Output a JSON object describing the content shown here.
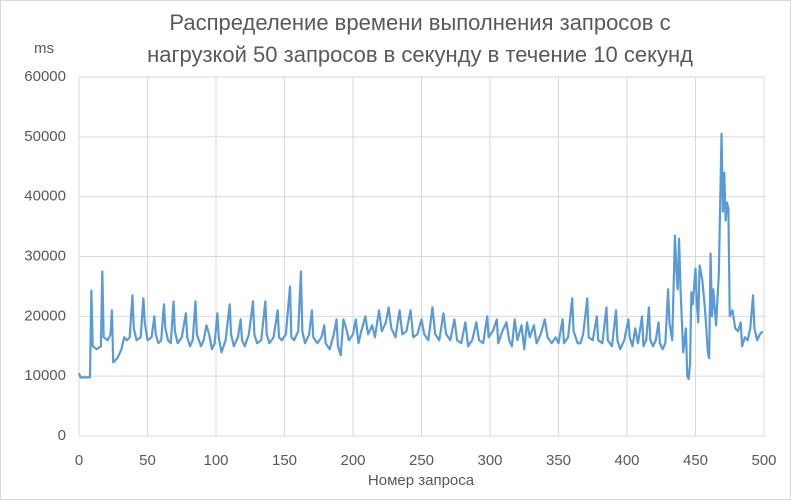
{
  "chart_data": {
    "type": "line",
    "title": [
      "Распределение времени выполнения запросов с",
      "нагрузкой 50 запросов в секунду в течение 10 секунд"
    ],
    "y_label": "ms",
    "x_label": "Номер запроса",
    "color": "#5b9bd5",
    "grid": true,
    "xlim": [
      0,
      500
    ],
    "xticks": [
      0,
      50,
      100,
      150,
      200,
      250,
      300,
      350,
      400,
      450,
      500
    ],
    "ylim": [
      0,
      60000
    ],
    "yticks": [
      0,
      10000,
      20000,
      30000,
      40000,
      50000,
      60000
    ],
    "x": [
      0,
      1,
      8,
      9,
      10,
      13,
      16,
      17,
      18,
      21,
      23,
      24,
      25,
      28,
      31,
      33,
      35,
      37,
      39,
      40,
      42,
      45,
      47,
      48,
      50,
      53,
      55,
      56,
      58,
      60,
      62,
      63,
      65,
      67,
      69,
      70,
      72,
      75,
      78,
      79,
      81,
      83,
      85,
      86,
      89,
      91,
      93,
      95,
      97,
      99,
      101,
      102,
      104,
      107,
      110,
      111,
      113,
      116,
      118,
      119,
      121,
      124,
      127,
      128,
      130,
      133,
      136,
      137,
      139,
      142,
      145,
      146,
      148,
      151,
      154,
      155,
      157,
      160,
      162,
      163,
      165,
      168,
      170,
      171,
      174,
      177,
      179,
      180,
      183,
      186,
      188,
      189,
      191,
      193,
      195,
      197,
      200,
      202,
      204,
      206,
      209,
      211,
      214,
      216,
      219,
      221,
      224,
      226,
      228,
      231,
      234,
      236,
      239,
      242,
      244,
      247,
      250,
      252,
      255,
      258,
      260,
      263,
      266,
      268,
      271,
      274,
      276,
      279,
      282,
      284,
      287,
      290,
      292,
      295,
      298,
      299,
      302,
      305,
      306,
      309,
      312,
      314,
      316,
      318,
      320,
      323,
      325,
      327,
      329,
      332,
      334,
      337,
      340,
      342,
      345,
      348,
      350,
      353,
      354,
      357,
      360,
      361,
      364,
      366,
      368,
      371,
      372,
      375,
      378,
      379,
      382,
      385,
      386,
      389,
      392,
      393,
      395,
      398,
      401,
      402,
      404,
      406,
      408,
      411,
      412,
      414,
      416,
      417,
      419,
      421,
      423,
      424,
      426,
      428,
      430,
      431,
      433,
      435,
      436,
      437,
      438,
      439,
      441,
      443,
      444,
      445,
      446,
      447,
      448,
      450,
      451,
      452,
      453,
      455,
      457,
      459,
      460,
      461,
      462,
      463,
      465,
      467,
      469,
      470,
      471,
      472,
      473,
      474,
      475,
      477,
      479,
      481,
      483,
      484,
      486,
      488,
      490,
      492,
      493,
      495,
      497,
      499
    ],
    "values": [
      10500,
      9800,
      9800,
      24300,
      15000,
      14500,
      15000,
      27500,
      16500,
      16000,
      17000,
      21000,
      12300,
      13000,
      14500,
      16500,
      16000,
      16500,
      23500,
      18000,
      16000,
      16500,
      23000,
      19000,
      16000,
      16500,
      20000,
      17000,
      15500,
      16000,
      22000,
      18000,
      16000,
      15500,
      22500,
      17500,
      15500,
      16500,
      20500,
      16500,
      15000,
      16000,
      22500,
      17000,
      15000,
      16000,
      18500,
      17000,
      14500,
      15500,
      20500,
      16500,
      14000,
      16000,
      22000,
      17000,
      15000,
      16500,
      19500,
      16000,
      15000,
      17000,
      22500,
      17000,
      15500,
      16000,
      22500,
      17000,
      15500,
      16500,
      21000,
      16500,
      16000,
      17000,
      25000,
      16500,
      16000,
      17500,
      27500,
      17500,
      15500,
      17000,
      21000,
      16500,
      15500,
      16500,
      18500,
      15500,
      14500,
      17000,
      19500,
      15000,
      13500,
      19500,
      18000,
      16000,
      17000,
      19500,
      15500,
      17500,
      20000,
      17000,
      18500,
      16500,
      21000,
      17500,
      19000,
      21500,
      18000,
      16500,
      21000,
      17000,
      17500,
      21000,
      16500,
      17000,
      19500,
      17000,
      16000,
      21500,
      17000,
      16000,
      20500,
      17000,
      16000,
      19500,
      16000,
      15500,
      19000,
      15000,
      16000,
      19000,
      16000,
      15500,
      20000,
      16500,
      17500,
      19500,
      15500,
      17500,
      19000,
      16000,
      15000,
      19500,
      16000,
      18500,
      14500,
      19000,
      16500,
      18500,
      15500,
      17000,
      19500,
      16500,
      15500,
      16500,
      15500,
      19500,
      15500,
      16500,
      23000,
      17500,
      15500,
      15500,
      17000,
      23000,
      16500,
      16000,
      20000,
      16000,
      15500,
      21500,
      16000,
      15000,
      21000,
      16000,
      14500,
      16000,
      19500,
      16500,
      15000,
      18000,
      15500,
      20000,
      15000,
      16000,
      21500,
      16000,
      15000,
      16000,
      19000,
      15500,
      14500,
      15500,
      24500,
      19000,
      16000,
      33500,
      28000,
      24500,
      33000,
      25000,
      14000,
      18000,
      10000,
      9500,
      12000,
      24000,
      22000,
      28000,
      22000,
      19000,
      28500,
      26000,
      21000,
      14000,
      13000,
      30500,
      20000,
      24500,
      18500,
      27000,
      50500,
      37500,
      44000,
      36000,
      39000,
      38000,
      20000,
      21000,
      18000,
      17500,
      19000,
      15000,
      16500,
      16000,
      18000,
      23500,
      18000,
      16000,
      17000,
      17500
    ]
  }
}
